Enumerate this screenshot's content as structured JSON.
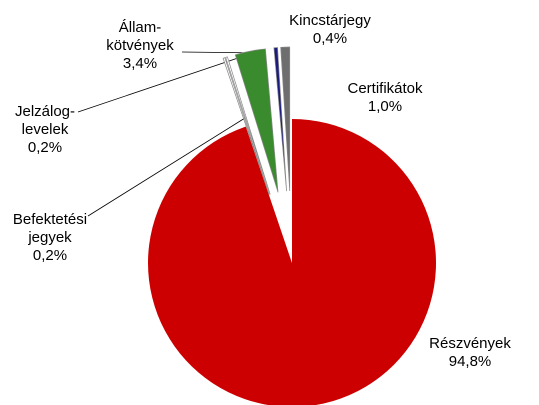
{
  "chart_data": {
    "type": "pie",
    "categories": [
      "Részvények",
      "Befektetési\njegyek",
      "Jelzálog-\nlevelek",
      "Állam-\nkötvények",
      "Kincstárjegy",
      "Certifikátok"
    ],
    "values": [
      94.8,
      0.2,
      0.2,
      3.4,
      0.4,
      1.0
    ],
    "value_labels": [
      "94,8%",
      "0,2%",
      "0,2%",
      "3,4%",
      "0,4%",
      "1,0%"
    ],
    "colors": [
      "#cc0000",
      "#ffffff",
      "#ffffff",
      "#3a8a2e",
      "#1c1c7c",
      "#6e6e6e"
    ]
  }
}
